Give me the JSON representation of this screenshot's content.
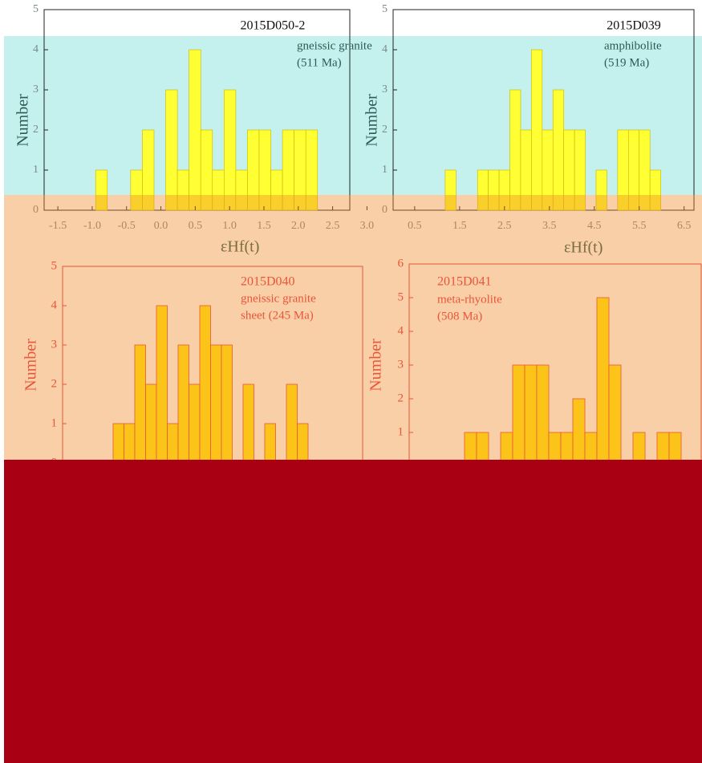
{
  "chart_data": [
    {
      "type": "histogram",
      "title": "2015D050-2",
      "annotations": [
        "gneissic granite",
        "(511 Ma)"
      ],
      "x_label": "εHf(t)",
      "y_label": "Number",
      "bins": [
        -0.95,
        -0.78,
        -0.61,
        -0.44,
        -0.27,
        -0.1,
        0.07,
        0.24,
        0.41,
        0.58,
        0.75,
        0.92,
        1.09,
        1.26,
        1.43,
        1.6,
        1.77,
        1.94,
        2.11,
        2.28
      ],
      "values": [
        1,
        0,
        0,
        1,
        2,
        0,
        3,
        1,
        4,
        2,
        1,
        3,
        1,
        2,
        2,
        1,
        2,
        2,
        2
      ],
      "color": "#ffff33",
      "xlim": [
        -1.7,
        2.75
      ],
      "xticks": [
        -1.5,
        {
          "value": -1,
          "label": "-1.0"
        },
        -0.5,
        {
          "value": 0,
          "label": "0.0"
        },
        0.5,
        {
          "value": 1,
          "label": "1.0"
        },
        1.5,
        {
          "value": 2,
          "label": "2.0"
        },
        2.5,
        {
          "value": 3,
          "label": "3.0"
        }
      ],
      "ylim": [
        0,
        5
      ],
      "yticks": [
        0,
        1,
        2,
        3,
        4,
        5
      ]
    },
    {
      "type": "histogram",
      "title": "2015D039",
      "annotations": [
        "amphibolite",
        "(519 Ma)"
      ],
      "x_label": "εHf(t)",
      "y_label": "Number",
      "bins": [
        1.18,
        1.42,
        1.66,
        1.9,
        2.14,
        2.38,
        2.62,
        2.86,
        3.1,
        3.34,
        3.58,
        3.82,
        4.06,
        4.3,
        4.54,
        4.78,
        5.02,
        5.26,
        5.5,
        5.74,
        5.98
      ],
      "values": [
        1,
        0,
        0,
        1,
        1,
        1,
        3,
        2,
        4,
        2,
        3,
        2,
        2,
        0,
        1,
        0,
        2,
        2,
        2,
        1
      ],
      "color": "#ffff33",
      "xlim": [
        0.02,
        6.72
      ],
      "xticks": [
        0.5,
        1.5,
        2.5,
        3.5,
        4.5,
        5.5,
        6.5
      ],
      "ylim": [
        0,
        5
      ],
      "yticks": [
        0,
        1,
        2,
        3,
        4,
        5
      ]
    },
    {
      "type": "bar",
      "title": "2015D040",
      "annotations": [
        "gneissic granite",
        "sheet (245 Ma)"
      ],
      "y_label": "Number",
      "categories": [
        null,
        null,
        null,
        null,
        null,
        null,
        null,
        null,
        null,
        null,
        null,
        null,
        null,
        null,
        null,
        null,
        null,
        null
      ],
      "values": [
        1,
        1,
        3,
        2,
        4,
        1,
        3,
        2,
        4,
        3,
        3,
        0,
        2,
        0,
        1,
        0,
        2,
        1
      ],
      "color": "#fcc419",
      "ylim": [
        0,
        5
      ],
      "yticks": [
        0,
        1,
        2,
        3,
        4,
        5
      ]
    },
    {
      "type": "bar",
      "title": "2015D041",
      "annotations": [
        "meta-rhyolite",
        "(508 Ma)"
      ],
      "y_label": "Number",
      "categories": [
        null,
        null,
        null,
        null,
        null,
        null,
        null,
        null,
        null,
        null,
        null,
        null,
        null,
        null,
        null,
        null,
        null,
        null
      ],
      "values": [
        1,
        1,
        0,
        1,
        3,
        3,
        3,
        1,
        1,
        2,
        1,
        5,
        3,
        0,
        1,
        0,
        1,
        1
      ],
      "color": "#fcc419",
      "ylim": [
        0,
        6
      ],
      "yticks": [
        0,
        1,
        2,
        3,
        4,
        5,
        6
      ]
    }
  ]
}
